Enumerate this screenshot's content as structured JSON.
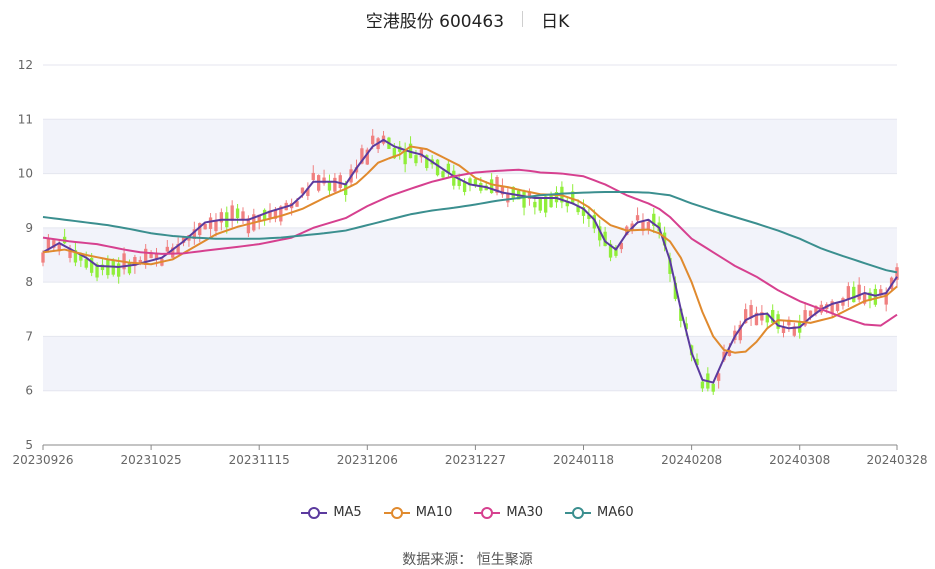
{
  "header": {
    "stock_name": "空港股份 600463",
    "period": "日K"
  },
  "source": "数据来源： 恒生聚源",
  "colors": {
    "up": "#f08080",
    "down": "#90ee3a",
    "grid_band": "#f2f3fa",
    "axis": "#888888"
  },
  "chart_data": {
    "type": "candlestick",
    "ylim": [
      5,
      12
    ],
    "y_ticks": [
      "5",
      "6",
      "7",
      "8",
      "9",
      "10",
      "11",
      "12"
    ],
    "x_tick_labels": [
      "20230926",
      "20231025",
      "20231115",
      "20231206",
      "20231227",
      "20240118",
      "20240208",
      "20240308",
      "20240328"
    ],
    "x_tick_index": [
      0,
      20,
      40,
      60,
      80,
      100,
      120,
      140,
      158
    ],
    "num_days": 159,
    "legend": [
      "MA5",
      "MA10",
      "MA30",
      "MA60"
    ],
    "series": [
      {
        "name": "MA5",
        "color": "#5b3a9e",
        "anchors": [
          [
            0,
            8.55
          ],
          [
            3,
            8.72
          ],
          [
            8,
            8.45
          ],
          [
            10,
            8.3
          ],
          [
            14,
            8.28
          ],
          [
            17,
            8.32
          ],
          [
            22,
            8.45
          ],
          [
            26,
            8.75
          ],
          [
            30,
            9.1
          ],
          [
            33,
            9.15
          ],
          [
            38,
            9.15
          ],
          [
            42,
            9.3
          ],
          [
            46,
            9.42
          ],
          [
            48,
            9.6
          ],
          [
            50,
            9.85
          ],
          [
            54,
            9.85
          ],
          [
            56,
            9.8
          ],
          [
            58,
            10.1
          ],
          [
            61,
            10.5
          ],
          [
            63,
            10.62
          ],
          [
            65,
            10.5
          ],
          [
            68,
            10.4
          ],
          [
            70,
            10.35
          ],
          [
            73,
            10.15
          ],
          [
            76,
            9.95
          ],
          [
            79,
            9.8
          ],
          [
            82,
            9.75
          ],
          [
            85,
            9.65
          ],
          [
            88,
            9.6
          ],
          [
            91,
            9.55
          ],
          [
            95,
            9.55
          ],
          [
            98,
            9.45
          ],
          [
            100,
            9.35
          ],
          [
            102,
            9.15
          ],
          [
            104,
            8.75
          ],
          [
            106,
            8.6
          ],
          [
            108,
            8.9
          ],
          [
            110,
            9.1
          ],
          [
            112,
            9.15
          ],
          [
            114,
            9.0
          ],
          [
            116,
            8.4
          ],
          [
            118,
            7.5
          ],
          [
            120,
            6.7
          ],
          [
            122,
            6.2
          ],
          [
            124,
            6.15
          ],
          [
            126,
            6.6
          ],
          [
            128,
            7.0
          ],
          [
            130,
            7.3
          ],
          [
            132,
            7.4
          ],
          [
            134,
            7.42
          ],
          [
            136,
            7.2
          ],
          [
            138,
            7.15
          ],
          [
            140,
            7.17
          ],
          [
            142,
            7.35
          ],
          [
            144,
            7.5
          ],
          [
            146,
            7.6
          ],
          [
            148,
            7.65
          ],
          [
            150,
            7.72
          ],
          [
            152,
            7.8
          ],
          [
            154,
            7.75
          ],
          [
            156,
            7.8
          ],
          [
            158,
            8.1
          ]
        ]
      },
      {
        "name": "MA10",
        "color": "#e08a2e",
        "anchors": [
          [
            0,
            8.55
          ],
          [
            4,
            8.6
          ],
          [
            8,
            8.5
          ],
          [
            12,
            8.42
          ],
          [
            16,
            8.36
          ],
          [
            20,
            8.33
          ],
          [
            24,
            8.42
          ],
          [
            28,
            8.65
          ],
          [
            32,
            8.88
          ],
          [
            36,
            9.02
          ],
          [
            40,
            9.12
          ],
          [
            44,
            9.22
          ],
          [
            48,
            9.35
          ],
          [
            52,
            9.55
          ],
          [
            56,
            9.72
          ],
          [
            58,
            9.82
          ],
          [
            60,
            10.0
          ],
          [
            62,
            10.2
          ],
          [
            64,
            10.28
          ],
          [
            66,
            10.35
          ],
          [
            68,
            10.5
          ],
          [
            71,
            10.45
          ],
          [
            74,
            10.3
          ],
          [
            77,
            10.15
          ],
          [
            80,
            9.92
          ],
          [
            83,
            9.8
          ],
          [
            86,
            9.75
          ],
          [
            89,
            9.68
          ],
          [
            92,
            9.62
          ],
          [
            96,
            9.6
          ],
          [
            99,
            9.5
          ],
          [
            101,
            9.38
          ],
          [
            103,
            9.2
          ],
          [
            105,
            9.05
          ],
          [
            108,
            8.95
          ],
          [
            112,
            8.97
          ],
          [
            114,
            8.9
          ],
          [
            116,
            8.75
          ],
          [
            118,
            8.45
          ],
          [
            120,
            8.0
          ],
          [
            122,
            7.45
          ],
          [
            124,
            7.0
          ],
          [
            126,
            6.75
          ],
          [
            128,
            6.7
          ],
          [
            130,
            6.72
          ],
          [
            132,
            6.9
          ],
          [
            134,
            7.15
          ],
          [
            136,
            7.3
          ],
          [
            139,
            7.28
          ],
          [
            142,
            7.25
          ],
          [
            144,
            7.3
          ],
          [
            146,
            7.35
          ],
          [
            148,
            7.45
          ],
          [
            150,
            7.55
          ],
          [
            152,
            7.65
          ],
          [
            154,
            7.7
          ],
          [
            156,
            7.75
          ],
          [
            158,
            7.92
          ]
        ]
      },
      {
        "name": "MA30",
        "color": "#d6408f",
        "anchors": [
          [
            0,
            8.82
          ],
          [
            5,
            8.75
          ],
          [
            10,
            8.7
          ],
          [
            15,
            8.6
          ],
          [
            18,
            8.55
          ],
          [
            22,
            8.52
          ],
          [
            26,
            8.53
          ],
          [
            30,
            8.58
          ],
          [
            36,
            8.65
          ],
          [
            40,
            8.7
          ],
          [
            46,
            8.82
          ],
          [
            50,
            9.0
          ],
          [
            56,
            9.18
          ],
          [
            60,
            9.4
          ],
          [
            64,
            9.58
          ],
          [
            68,
            9.72
          ],
          [
            72,
            9.85
          ],
          [
            76,
            9.95
          ],
          [
            80,
            10.02
          ],
          [
            84,
            10.05
          ],
          [
            88,
            10.07
          ],
          [
            90,
            10.05
          ],
          [
            92,
            10.02
          ],
          [
            96,
            10.0
          ],
          [
            100,
            9.95
          ],
          [
            104,
            9.8
          ],
          [
            108,
            9.6
          ],
          [
            112,
            9.45
          ],
          [
            114,
            9.35
          ],
          [
            116,
            9.2
          ],
          [
            118,
            9.0
          ],
          [
            120,
            8.8
          ],
          [
            124,
            8.55
          ],
          [
            128,
            8.3
          ],
          [
            132,
            8.1
          ],
          [
            136,
            7.85
          ],
          [
            140,
            7.65
          ],
          [
            144,
            7.5
          ],
          [
            148,
            7.35
          ],
          [
            152,
            7.22
          ],
          [
            155,
            7.2
          ],
          [
            158,
            7.4
          ]
        ]
      },
      {
        "name": "MA60",
        "color": "#3b8f8f",
        "anchors": [
          [
            0,
            9.2
          ],
          [
            4,
            9.15
          ],
          [
            8,
            9.1
          ],
          [
            12,
            9.05
          ],
          [
            16,
            8.98
          ],
          [
            20,
            8.9
          ],
          [
            24,
            8.85
          ],
          [
            28,
            8.82
          ],
          [
            32,
            8.8
          ],
          [
            36,
            8.8
          ],
          [
            40,
            8.8
          ],
          [
            44,
            8.82
          ],
          [
            48,
            8.86
          ],
          [
            52,
            8.9
          ],
          [
            56,
            8.95
          ],
          [
            60,
            9.05
          ],
          [
            64,
            9.15
          ],
          [
            68,
            9.25
          ],
          [
            72,
            9.32
          ],
          [
            76,
            9.37
          ],
          [
            80,
            9.43
          ],
          [
            84,
            9.5
          ],
          [
            88,
            9.55
          ],
          [
            92,
            9.6
          ],
          [
            96,
            9.63
          ],
          [
            100,
            9.65
          ],
          [
            104,
            9.66
          ],
          [
            108,
            9.66
          ],
          [
            112,
            9.65
          ],
          [
            116,
            9.6
          ],
          [
            120,
            9.45
          ],
          [
            124,
            9.32
          ],
          [
            128,
            9.2
          ],
          [
            132,
            9.08
          ],
          [
            136,
            8.95
          ],
          [
            140,
            8.8
          ],
          [
            144,
            8.62
          ],
          [
            148,
            8.48
          ],
          [
            152,
            8.35
          ],
          [
            156,
            8.22
          ],
          [
            158,
            8.18
          ]
        ]
      }
    ]
  }
}
